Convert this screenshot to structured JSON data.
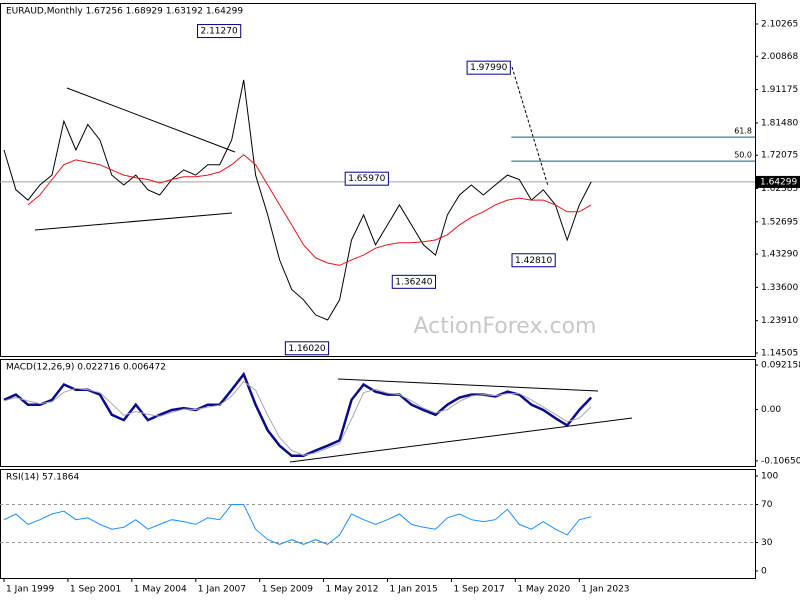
{
  "chart_data": [
    {
      "type": "line",
      "title": "EURAUD,Monthly 1.67256 1.68929 1.63192 1.64299",
      "x": [
        "1999-01-01",
        "1999-07-01",
        "2000-01-01",
        "2000-07-01",
        "2001-01-01",
        "2001-07-01",
        "2002-01-01",
        "2002-07-01",
        "2003-01-01",
        "2003-07-01",
        "2004-01-01",
        "2004-07-01",
        "2005-01-01",
        "2005-07-01",
        "2006-01-01",
        "2006-07-01",
        "2007-01-01",
        "2007-07-01",
        "2008-01-01",
        "2008-07-01",
        "2009-01-01",
        "2009-07-01",
        "2010-01-01",
        "2010-07-01",
        "2011-01-01",
        "2011-07-01",
        "2012-01-01",
        "2012-07-01",
        "2013-01-01",
        "2013-07-01",
        "2014-01-01",
        "2014-07-01",
        "2015-01-01",
        "2015-07-01",
        "2016-01-01",
        "2016-07-01",
        "2017-01-01",
        "2017-07-01",
        "2018-01-01",
        "2018-07-01",
        "2019-01-01",
        "2019-07-01",
        "2020-01-01",
        "2020-07-01",
        "2021-01-01",
        "2021-07-01",
        "2022-01-01",
        "2022-07-01",
        "2023-01-01",
        "2023-07-01"
      ],
      "series": [
        {
          "color": "#000000",
          "values": [
            1.736,
            1.62,
            1.59,
            1.634,
            1.663,
            1.82,
            1.736,
            1.81,
            1.765,
            1.663,
            1.634,
            1.663,
            1.62,
            1.605,
            1.65,
            1.678,
            1.663,
            1.693,
            1.693,
            1.765,
            1.94,
            1.663,
            1.547,
            1.416,
            1.33,
            1.3,
            1.256,
            1.241,
            1.3,
            1.474,
            1.547,
            1.46,
            1.518,
            1.576,
            1.518,
            1.46,
            1.43,
            1.547,
            1.605,
            1.634,
            1.605,
            1.634,
            1.663,
            1.65,
            1.59,
            1.62,
            1.576,
            1.474,
            1.576,
            1.643
          ]
        },
        {
          "color": "#e8141c",
          "values": [
            null,
            null,
            1.576,
            1.605,
            1.65,
            1.693,
            1.707,
            1.7,
            1.693,
            1.678,
            1.663,
            1.655,
            1.65,
            1.64,
            1.65,
            1.658,
            1.658,
            1.663,
            1.672,
            1.693,
            1.722,
            1.693,
            1.634,
            1.576,
            1.518,
            1.46,
            1.422,
            1.407,
            1.4,
            1.416,
            1.43,
            1.45,
            1.46,
            1.466,
            1.466,
            1.469,
            1.474,
            1.489,
            1.518,
            1.54,
            1.556,
            1.576,
            1.59,
            1.596,
            1.59,
            1.59,
            1.576,
            1.556,
            1.556,
            1.576
          ]
        }
      ],
      "xlim": [
        "1998-11-01",
        "2030-05-01"
      ],
      "ylim": [
        1.1363,
        2.1638
      ],
      "yticks": [
        2.10265,
        2.00868,
        1.91175,
        {
          "value": 1.8148,
          "label": "1.81480"
        },
        1.72075,
        1.62385,
        1.52695,
        {
          "value": 1.4329,
          "label": "1.43290"
        },
        {
          "value": 1.336,
          "label": "1.33600"
        },
        {
          "value": 1.2391,
          "label": "1.23910"
        },
        1.14505
      ],
      "current": {
        "value": 1.64299,
        "label": "1.64299"
      },
      "levels": [
        {
          "value": 1.7733,
          "label": "61.8"
        },
        {
          "value": 1.7037,
          "label": "50.0"
        }
      ],
      "annotations": [
        {
          "x": "2008-12-01",
          "value": 2.1127,
          "label": "2.11270"
        },
        {
          "x": "2020-03-01",
          "value": 1.9799,
          "label": "1.97990"
        },
        {
          "x": "2015-03-01",
          "value": 1.6597,
          "label": "1.65970"
        },
        {
          "x": "2016-10-01",
          "value": 1.3624,
          "label": "1.36240"
        },
        {
          "x": "2012-08-01",
          "value": 1.1602,
          "label": "1.16020"
        },
        {
          "x": "2022-05-01",
          "value": 1.4281,
          "label": "1.42810"
        }
      ],
      "watermark": "ActionForex.com"
    },
    {
      "type": "line",
      "title": "MACD(12,26,9) 0.022716 0.006472",
      "x": [
        "1999-01-01",
        "1999-07-01",
        "2000-01-01",
        "2000-07-01",
        "2001-01-01",
        "2001-07-01",
        "2002-01-01",
        "2002-07-01",
        "2003-01-01",
        "2003-07-01",
        "2004-01-01",
        "2004-07-01",
        "2005-01-01",
        "2005-07-01",
        "2006-01-01",
        "2006-07-01",
        "2007-01-01",
        "2007-07-01",
        "2008-01-01",
        "2008-07-01",
        "2009-01-01",
        "2009-07-01",
        "2010-01-01",
        "2010-07-01",
        "2011-01-01",
        "2011-07-01",
        "2012-01-01",
        "2012-07-01",
        "2013-01-01",
        "2013-07-01",
        "2014-01-01",
        "2014-07-01",
        "2015-01-01",
        "2015-07-01",
        "2016-01-01",
        "2016-07-01",
        "2017-01-01",
        "2017-07-01",
        "2018-01-01",
        "2018-07-01",
        "2019-01-01",
        "2019-07-01",
        "2020-01-01",
        "2020-07-01",
        "2021-01-01",
        "2021-07-01",
        "2022-01-01",
        "2022-07-01",
        "2023-01-01",
        "2023-07-01"
      ],
      "series": [
        {
          "color": "#0a0a8c",
          "values": [
            0.02,
            0.031,
            0.01,
            0.01,
            0.02,
            0.052,
            0.041,
            0.041,
            0.031,
            -0.011,
            -0.022,
            0.01,
            -0.022,
            -0.011,
            -0.001,
            0.003,
            -0.001,
            0.01,
            0.01,
            0.041,
            0.073,
            0.01,
            -0.043,
            -0.075,
            -0.096,
            -0.096,
            -0.085,
            -0.075,
            -0.064,
            0.02,
            0.052,
            0.037,
            0.031,
            0.031,
            0.01,
            -0.001,
            -0.011,
            0.01,
            0.025,
            0.031,
            0.031,
            0.027,
            0.037,
            0.031,
            0.01,
            -0.001,
            -0.018,
            -0.033,
            -0.001,
            0.025
          ]
        },
        {
          "color": "#a8a8a8",
          "values": [
            0.018,
            0.025,
            0.018,
            0.012,
            0.016,
            0.036,
            0.044,
            0.041,
            0.035,
            0.012,
            -0.012,
            -0.004,
            -0.01,
            -0.014,
            -0.006,
            0.001,
            0.0,
            0.005,
            0.009,
            0.028,
            0.058,
            0.04,
            -0.012,
            -0.058,
            -0.085,
            -0.095,
            -0.09,
            -0.08,
            -0.07,
            -0.02,
            0.035,
            0.042,
            0.034,
            0.031,
            0.018,
            0.003,
            -0.007,
            0.0,
            0.017,
            0.028,
            0.031,
            0.029,
            0.033,
            0.033,
            0.02,
            0.005,
            -0.01,
            -0.025,
            -0.018,
            0.006
          ]
        }
      ],
      "xlim": [
        "1998-11-01",
        "2030-05-01"
      ],
      "ylim": [
        -0.1171,
        0.1048
      ],
      "yticks": [
        0.092158,
        {
          "value": 0,
          "label": "0.00"
        },
        -0.106503
      ]
    },
    {
      "type": "line",
      "title": "RSI(14) 57.1864",
      "x": [
        "1999-01-01",
        "1999-07-01",
        "2000-01-01",
        "2000-07-01",
        "2001-01-01",
        "2001-07-01",
        "2002-01-01",
        "2002-07-01",
        "2003-01-01",
        "2003-07-01",
        "2004-01-01",
        "2004-07-01",
        "2005-01-01",
        "2005-07-01",
        "2006-01-01",
        "2006-07-01",
        "2007-01-01",
        "2007-07-01",
        "2008-01-01",
        "2008-07-01",
        "2009-01-01",
        "2009-07-01",
        "2010-01-01",
        "2010-07-01",
        "2011-01-01",
        "2011-07-01",
        "2012-01-01",
        "2012-07-01",
        "2013-01-01",
        "2013-07-01",
        "2014-01-01",
        "2014-07-01",
        "2015-01-01",
        "2015-07-01",
        "2016-01-01",
        "2016-07-01",
        "2017-01-01",
        "2017-07-01",
        "2018-01-01",
        "2018-07-01",
        "2019-01-01",
        "2019-07-01",
        "2020-01-01",
        "2020-07-01",
        "2021-01-01",
        "2021-07-01",
        "2022-01-01",
        "2022-07-01",
        "2023-01-01",
        "2023-07-01"
      ],
      "series": [
        {
          "color": "#1e90ff",
          "values": [
            54,
            60,
            49,
            54,
            60,
            63,
            54,
            56,
            49,
            44,
            46,
            54,
            44,
            49,
            54,
            52,
            49,
            56,
            54,
            70,
            70,
            44,
            33,
            28,
            33,
            28,
            33,
            28,
            38,
            60,
            54,
            49,
            54,
            60,
            49,
            46,
            44,
            56,
            60,
            54,
            52,
            54,
            65,
            49,
            44,
            52,
            44,
            38,
            54,
            57
          ]
        }
      ],
      "xlim": [
        "1998-11-01",
        "2030-05-01"
      ],
      "ylim": [
        -7.4,
        107.4
      ],
      "yticks": [
        100,
        70,
        30,
        0
      ],
      "levels": [
        {
          "value": 70
        },
        {
          "value": 30
        }
      ],
      "xticks": [
        {
          "value": "1999-01-01",
          "label": "1 Jan 1999"
        },
        {
          "value": "2001-09-01",
          "label": "1 Sep 2001"
        },
        {
          "value": "2004-05-01",
          "label": "1 May 2004"
        },
        {
          "value": "2007-01-01",
          "label": "1 Jan 2007"
        },
        {
          "value": "2009-09-01",
          "label": "1 Sep 2009"
        },
        {
          "value": "2012-05-01",
          "label": "1 May 2012"
        },
        {
          "value": "2015-01-01",
          "label": "1 Jan 2015"
        },
        {
          "value": "2017-09-01",
          "label": "1 Sep 2017"
        },
        {
          "value": "2020-05-01",
          "label": "1 May 2020"
        },
        {
          "value": "2023-01-01",
          "label": "1 Jan 2023"
        }
      ]
    }
  ]
}
